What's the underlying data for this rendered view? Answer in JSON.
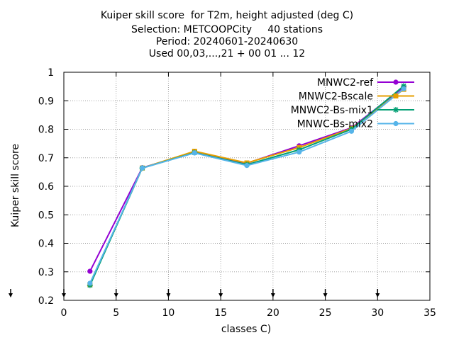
{
  "chart_data": {
    "type": "line",
    "title_lines": [
      "Kuiper skill score  for T2m, height adjusted (deg C)",
      "Selection: METCOOPCity     40 stations",
      "Period: 20240601-20240630",
      "Used 00,03,...,21 + 00 01 ... 12"
    ],
    "xlabel": "classes C)",
    "ylabel": "Kuiper skill score",
    "xlim": [
      0,
      35
    ],
    "ylim": [
      0.2,
      1.0
    ],
    "x_ticks": [
      "0",
      "5",
      "10",
      "15",
      "20",
      "25",
      "30",
      "35"
    ],
    "y_ticks": [
      "0.2",
      "0.3",
      "0.4",
      "0.5",
      "0.6",
      "0.7",
      "0.8",
      "0.9",
      "1"
    ],
    "grid": true,
    "legend_position": "top-right",
    "x": [
      2.5,
      7.5,
      12.5,
      17.5,
      22.5,
      27.5,
      32.5
    ],
    "series": [
      {
        "name": "MNWC2-ref",
        "color": "#9400d3",
        "marker": "filled-circle",
        "values": [
          0.302,
          0.665,
          0.72,
          0.681,
          0.742,
          0.805,
          0.948
        ]
      },
      {
        "name": "MNWC2-Bscale",
        "color": "#e69f00",
        "marker": "filled-square",
        "values": [
          0.255,
          0.664,
          0.723,
          0.682,
          0.736,
          0.803,
          0.94
        ]
      },
      {
        "name": "MNWC2-Bs-mix1",
        "color": "#009e73",
        "marker": "asterisk",
        "values": [
          0.253,
          0.664,
          0.718,
          0.676,
          0.728,
          0.8,
          0.952
        ]
      },
      {
        "name": "MNWC-Bs-mix2",
        "color": "#56b4e9",
        "marker": "filled-circle",
        "values": [
          0.26,
          0.664,
          0.717,
          0.673,
          0.72,
          0.793,
          0.942
        ]
      }
    ],
    "x_axis_arrow_markers": [
      0,
      5,
      10,
      15,
      20,
      25,
      30
    ]
  }
}
